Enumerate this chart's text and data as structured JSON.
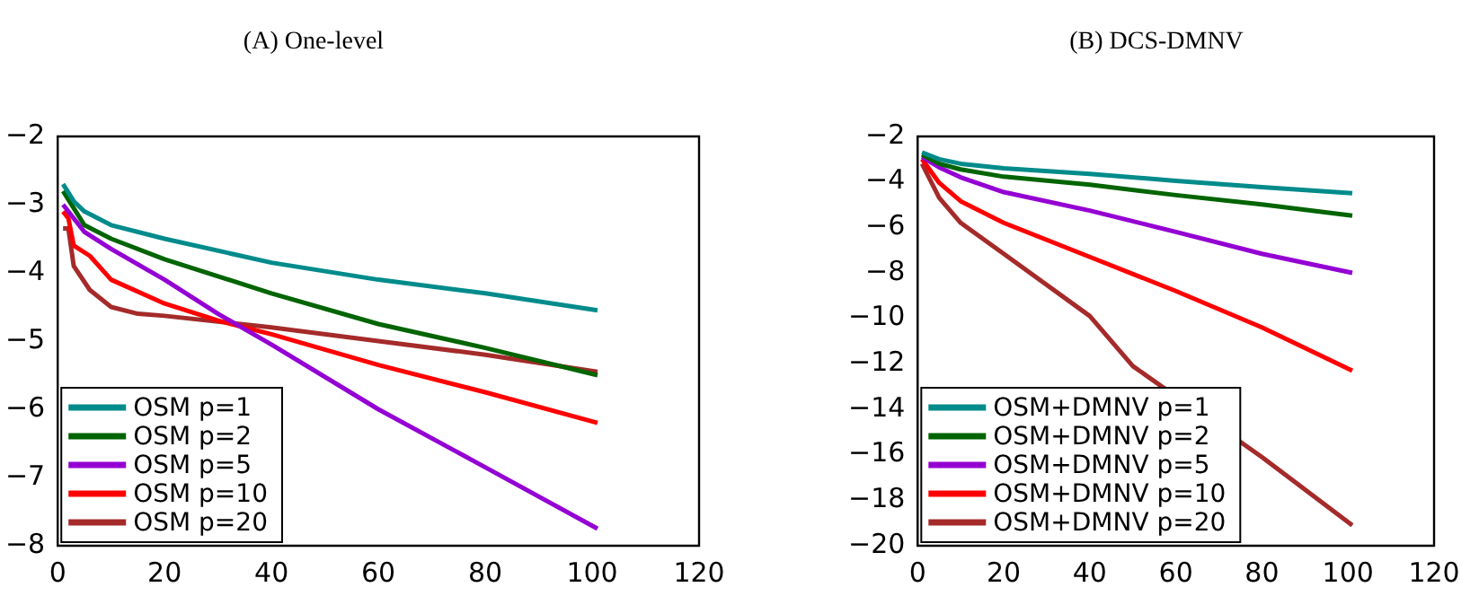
{
  "chart_data": [
    {
      "type": "line",
      "title": "(A) One-level",
      "xlim": [
        0,
        120
      ],
      "xticks": [
        0,
        20,
        40,
        60,
        80,
        100,
        120
      ],
      "ylim": [
        -8,
        -2
      ],
      "yticks": [
        -2,
        -3,
        -4,
        -5,
        -6,
        -7,
        -8
      ],
      "grid": false,
      "legend": "bottom left",
      "marker": "none",
      "line_style": "solid",
      "series": [
        {
          "name": "OSM p=1",
          "color": "#008b8b",
          "x": [
            1,
            3,
            5,
            10,
            20,
            40,
            60,
            80,
            101
          ],
          "values": [
            -2.7,
            -2.95,
            -3.1,
            -3.3,
            -3.5,
            -3.85,
            -4.1,
            -4.3,
            -4.55
          ]
        },
        {
          "name": "OSM p=2",
          "color": "#006400",
          "x": [
            1,
            5,
            10,
            20,
            40,
            60,
            80,
            101
          ],
          "values": [
            -2.8,
            -3.3,
            -3.5,
            -3.8,
            -4.3,
            -4.75,
            -5.1,
            -5.5
          ]
        },
        {
          "name": "OSM p=5",
          "color": "#9400d3",
          "x": [
            1,
            5,
            10,
            20,
            30,
            40,
            60,
            80,
            101
          ],
          "values": [
            -3.0,
            -3.4,
            -3.65,
            -4.1,
            -4.6,
            -5.05,
            -6.0,
            -6.85,
            -7.75
          ]
        },
        {
          "name": "OSM p=10",
          "color": "#ff0000",
          "x": [
            1,
            2,
            3,
            6,
            10,
            20,
            30,
            40,
            60,
            80,
            101
          ],
          "values": [
            -3.1,
            -3.2,
            -3.6,
            -3.75,
            -4.1,
            -4.45,
            -4.7,
            -4.9,
            -5.35,
            -5.75,
            -6.2
          ]
        },
        {
          "name": "OSM p=20",
          "color": "#a52a2a",
          "x": [
            1,
            2,
            3,
            6,
            10,
            15,
            20,
            40,
            60,
            80,
            101
          ],
          "values": [
            -3.35,
            -3.35,
            -3.9,
            -4.25,
            -4.5,
            -4.6,
            -4.63,
            -4.8,
            -5.0,
            -5.2,
            -5.45
          ]
        }
      ]
    },
    {
      "type": "line",
      "title": "(B) DCS-DMNV",
      "xlim": [
        0,
        120
      ],
      "xticks": [
        0,
        20,
        40,
        60,
        80,
        100,
        120
      ],
      "ylim": [
        -20,
        -2
      ],
      "yticks": [
        -2,
        -4,
        -6,
        -8,
        -10,
        -12,
        -14,
        -16,
        -18,
        -20
      ],
      "grid": false,
      "legend": "bottom left",
      "marker": "none",
      "line_style": "solid",
      "series": [
        {
          "name": "OSM+DMNV p=1",
          "color": "#008b8b",
          "x": [
            1,
            5,
            10,
            20,
            40,
            60,
            80,
            101
          ],
          "values": [
            -2.7,
            -3.0,
            -3.2,
            -3.4,
            -3.65,
            -3.95,
            -4.23,
            -4.5
          ]
        },
        {
          "name": "OSM+DMNV p=2",
          "color": "#006400",
          "x": [
            1,
            5,
            10,
            20,
            40,
            60,
            80,
            101
          ],
          "values": [
            -2.8,
            -3.2,
            -3.45,
            -3.77,
            -4.12,
            -4.58,
            -4.99,
            -5.48
          ]
        },
        {
          "name": "OSM+DMNV p=5",
          "color": "#9400d3",
          "x": [
            1,
            5,
            10,
            20,
            40,
            60,
            80,
            101
          ],
          "values": [
            -2.9,
            -3.36,
            -3.8,
            -4.45,
            -5.26,
            -6.2,
            -7.16,
            -8.0
          ]
        },
        {
          "name": "OSM+DMNV p=10",
          "color": "#ff0000",
          "x": [
            1,
            5,
            10,
            20,
            40,
            60,
            80,
            101
          ],
          "values": [
            -3.0,
            -4.04,
            -4.85,
            -5.8,
            -7.3,
            -8.8,
            -10.4,
            -12.3
          ]
        },
        {
          "name": "OSM+DMNV p=20",
          "color": "#a52a2a",
          "x": [
            1,
            5,
            10,
            20,
            40,
            50,
            80,
            101
          ],
          "values": [
            -3.2,
            -4.7,
            -5.8,
            -7.16,
            -9.9,
            -12.1,
            -16.1,
            -19.1
          ]
        }
      ]
    }
  ]
}
